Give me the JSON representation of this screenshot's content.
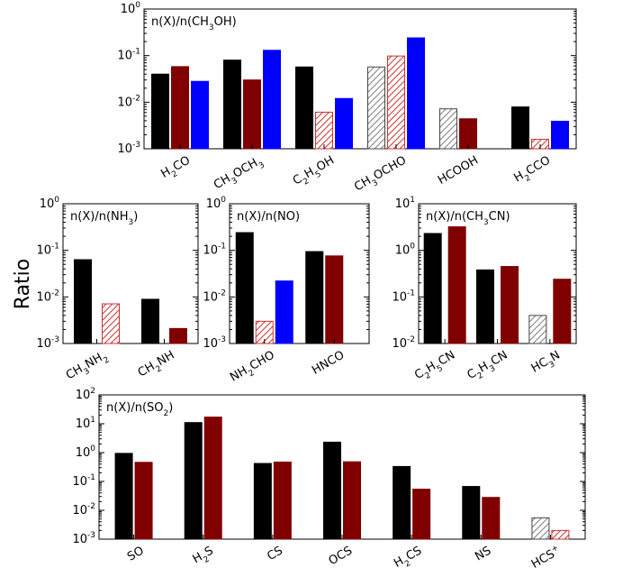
{
  "ylabel": "Ratio",
  "colors": {
    "black": "#000000",
    "darkred": "#800000",
    "blue": "#0000ff",
    "hatch_gray": "#808080",
    "hatch_red": "#cc3333"
  },
  "chart_data": [
    {
      "type": "bar",
      "title": "n(X)/n(CH3OH)",
      "scale": "log",
      "ylim": [
        0.001,
        1
      ],
      "categories": [
        "H2CO",
        "CH3OCH3",
        "C2H5OH",
        "CH3OCHO",
        "HCOOH",
        "H2CCO"
      ],
      "series": [
        {
          "style": "solid-black",
          "values": [
            0.04,
            0.08,
            0.057,
            0.057,
            0.0072,
            0.0079
          ]
        },
        {
          "style": "solid-darkred",
          "values": [
            0.058,
            0.03,
            0.0061,
            0.098,
            0.0044,
            0.0016
          ]
        },
        {
          "style": "solid-blue",
          "values": [
            0.028,
            0.13,
            0.012,
            0.24,
            null,
            0.0039
          ]
        }
      ],
      "hatched": [
        [
          3,
          0
        ],
        [
          2,
          1
        ],
        [
          3,
          1
        ],
        [
          4,
          0
        ],
        [
          5,
          1
        ]
      ]
    },
    {
      "type": "bar",
      "title": "n(X)/n(NH3)",
      "scale": "log",
      "ylim": [
        0.001,
        1
      ],
      "categories": [
        "CH3NH2",
        "CH2NH"
      ],
      "series": [
        {
          "style": "solid-black",
          "values": [
            0.063,
            0.0089
          ]
        },
        {
          "style": "solid-darkred",
          "values": [
            0.0071,
            0.0021
          ]
        }
      ],
      "hatched": [
        [
          0,
          1
        ]
      ]
    },
    {
      "type": "bar",
      "title": "n(X)/n(NO)",
      "scale": "log",
      "ylim": [
        0.001,
        1
      ],
      "categories": [
        "NH2CHO",
        "HNCO"
      ],
      "series": [
        {
          "style": "solid-black",
          "values": [
            0.24,
            0.094
          ]
        },
        {
          "style": "solid-darkred",
          "values": [
            0.003,
            0.076
          ]
        },
        {
          "style": "solid-blue",
          "values": [
            0.022,
            null
          ]
        }
      ],
      "hatched": [
        [
          0,
          1
        ]
      ]
    },
    {
      "type": "bar",
      "title": "n(X)/n(CH3CN)",
      "scale": "log",
      "ylim": [
        0.01,
        10
      ],
      "categories": [
        "C2H5CN",
        "C2H3CN",
        "HC3N"
      ],
      "series": [
        {
          "style": "solid-black",
          "values": [
            2.3,
            0.38,
            0.04
          ]
        },
        {
          "style": "solid-darkred",
          "values": [
            3.2,
            0.45,
            0.24
          ]
        }
      ],
      "hatched": [
        [
          2,
          0
        ]
      ]
    },
    {
      "type": "bar",
      "title": "n(X)/n(SO2)",
      "scale": "log",
      "ylim": [
        0.001,
        100
      ],
      "categories": [
        "SO",
        "H2S",
        "CS",
        "OCS",
        "H2CS",
        "NS",
        "HCS+"
      ],
      "series": [
        {
          "style": "solid-black",
          "values": [
            0.94,
            11.0,
            0.42,
            2.3,
            0.33,
            0.067,
            0.0055
          ]
        },
        {
          "style": "solid-darkred",
          "values": [
            0.46,
            17.0,
            0.47,
            0.48,
            0.054,
            0.028,
            0.002
          ]
        }
      ],
      "hatched": [
        [
          6,
          0
        ],
        [
          6,
          1
        ]
      ]
    }
  ]
}
